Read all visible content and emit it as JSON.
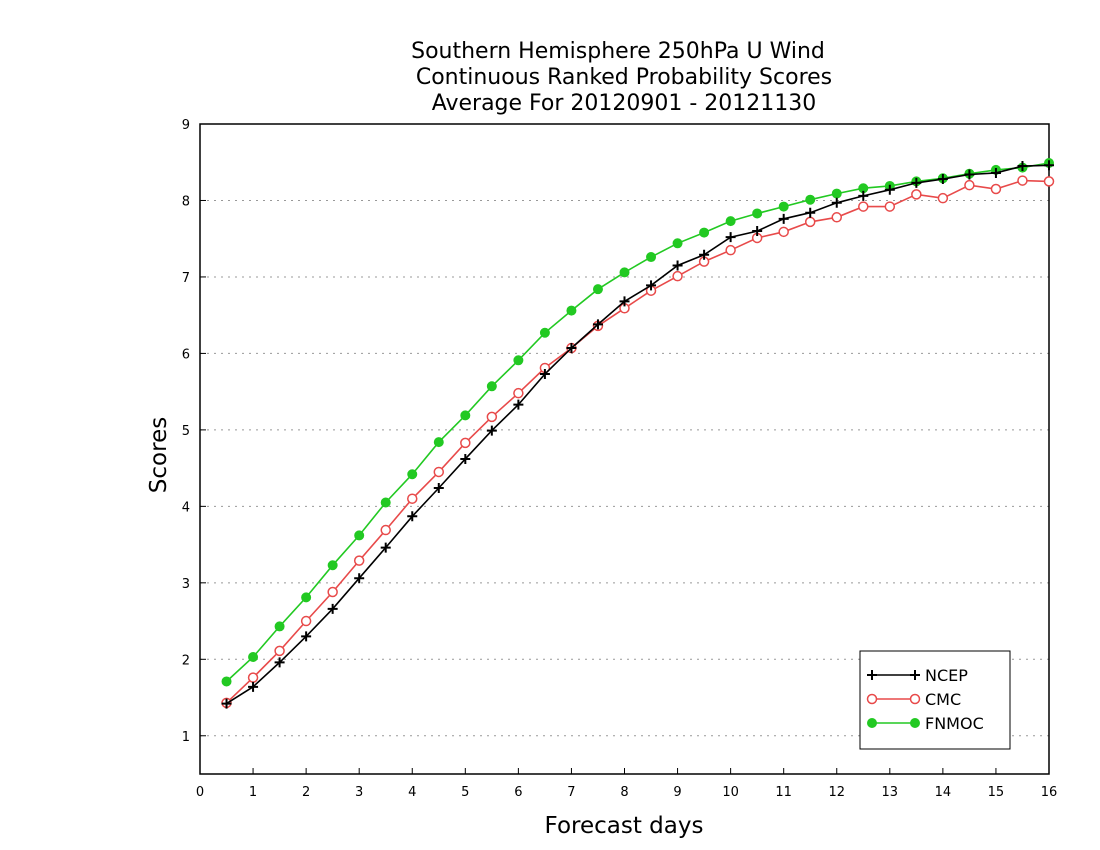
{
  "chart_data": {
    "type": "line",
    "title_lines": [
      "Southern Hemisphere 250hPa U Wind",
      "Continuous Ranked Probability Scores",
      "Average For 20120901 - 20121130"
    ],
    "xlabel": "Forecast days",
    "ylabel": "Scores",
    "xlim": [
      0,
      16
    ],
    "ylim": [
      0.5,
      9
    ],
    "xticks": [
      0,
      1,
      2,
      3,
      4,
      5,
      6,
      7,
      8,
      9,
      10,
      11,
      12,
      13,
      14,
      15,
      16
    ],
    "yticks": [
      1,
      2,
      3,
      4,
      5,
      6,
      7,
      8,
      9
    ],
    "grid": "horizontal dotted",
    "legend_position": "bottom-right",
    "x": [
      0.5,
      1,
      1.5,
      2,
      2.5,
      3,
      3.5,
      4,
      4.5,
      5,
      5.5,
      6,
      6.5,
      7,
      7.5,
      8,
      8.5,
      9,
      9.5,
      10,
      10.5,
      11,
      11.5,
      12,
      12.5,
      13,
      13.5,
      14,
      14.5,
      15,
      15.5,
      16
    ],
    "series": [
      {
        "name": "NCEP",
        "color": "#000000",
        "marker": "plus",
        "values": [
          1.42,
          1.64,
          1.96,
          2.3,
          2.66,
          3.06,
          3.46,
          3.87,
          4.24,
          4.62,
          4.99,
          5.33,
          5.73,
          6.07,
          6.38,
          6.68,
          6.89,
          7.15,
          7.29,
          7.52,
          7.6,
          7.76,
          7.84,
          7.97,
          8.06,
          8.14,
          8.23,
          8.28,
          8.34,
          8.36,
          8.45,
          8.46
        ]
      },
      {
        "name": "CMC",
        "color": "#e84a4a",
        "marker": "open-circle",
        "values": [
          1.43,
          1.76,
          2.11,
          2.5,
          2.88,
          3.29,
          3.69,
          4.1,
          4.45,
          4.83,
          5.17,
          5.48,
          5.81,
          6.07,
          6.36,
          6.59,
          6.82,
          7.01,
          7.2,
          7.35,
          7.51,
          7.59,
          7.72,
          7.78,
          7.92,
          7.92,
          8.08,
          8.03,
          8.2,
          8.15,
          8.26,
          8.25
        ]
      },
      {
        "name": "FNMOC",
        "color": "#22c922",
        "marker": "filled-circle",
        "values": [
          1.71,
          2.03,
          2.43,
          2.81,
          3.23,
          3.62,
          4.05,
          4.42,
          4.84,
          5.19,
          5.57,
          5.91,
          6.27,
          6.56,
          6.84,
          7.06,
          7.26,
          7.44,
          7.58,
          7.73,
          7.83,
          7.92,
          8.01,
          8.09,
          8.16,
          8.19,
          8.25,
          8.29,
          8.35,
          8.4,
          8.43,
          8.49
        ]
      }
    ]
  }
}
